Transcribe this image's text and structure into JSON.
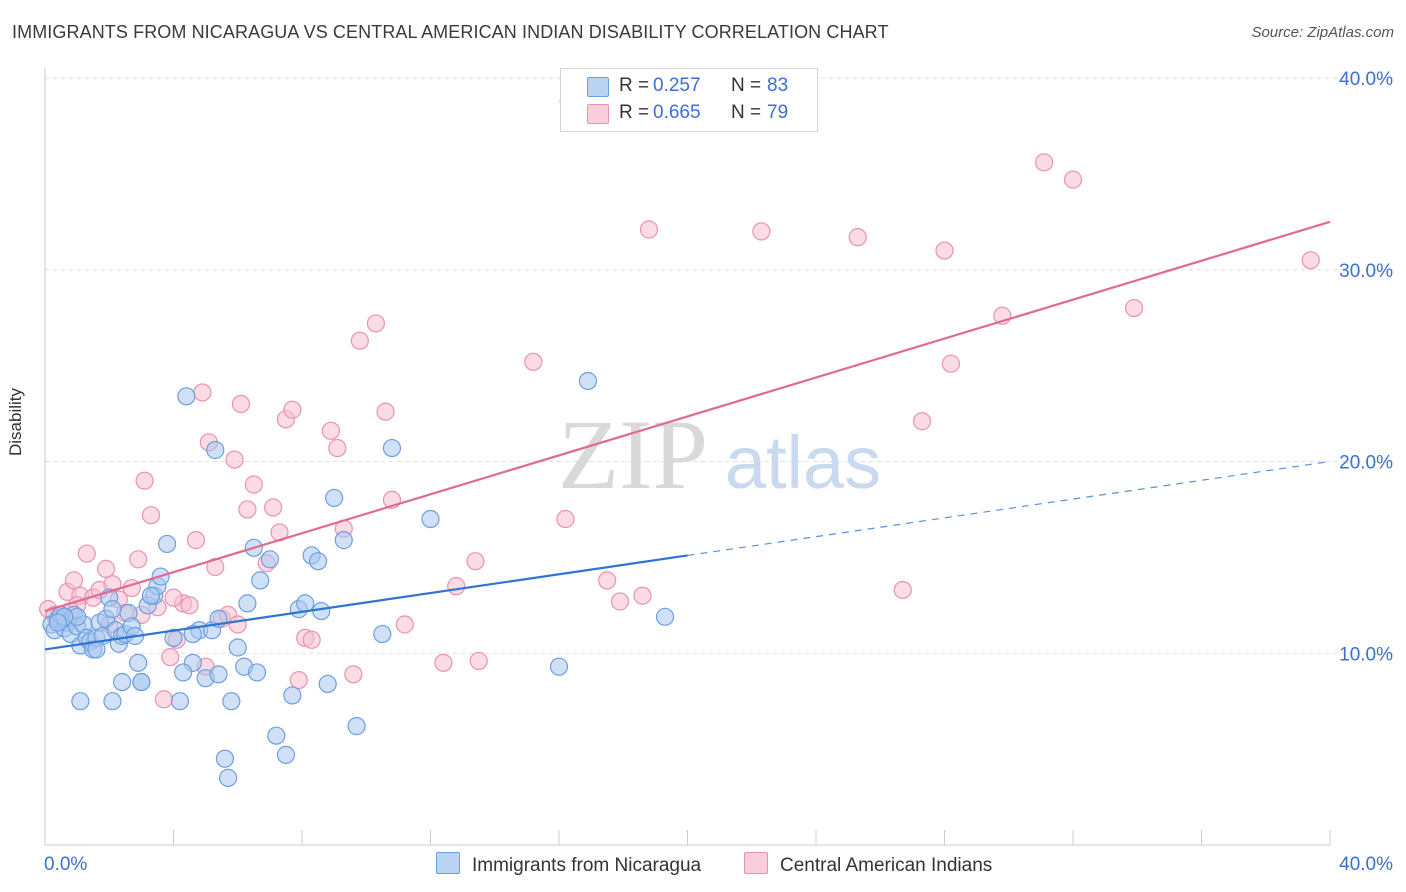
{
  "header": {
    "title": "IMMIGRANTS FROM NICARAGUA VS CENTRAL AMERICAN INDIAN DISABILITY CORRELATION CHART",
    "source": "Source: ZipAtlas.com"
  },
  "watermark": {
    "zip": "ZIP",
    "atlas": "atlas"
  },
  "legend": {
    "r_label": "R =",
    "n_label": "N =",
    "series": [
      {
        "r": "0.257",
        "n": "83"
      },
      {
        "r": "0.665",
        "n": "79"
      }
    ]
  },
  "chart_data": {
    "type": "scatter",
    "title": "IMMIGRANTS FROM NICARAGUA VS CENTRAL AMERICAN INDIAN DISABILITY CORRELATION CHART",
    "xlabel": "",
    "ylabel": "Disability",
    "xlim": [
      0,
      40
    ],
    "ylim": [
      0,
      40
    ],
    "x_tick_labels": [
      "0.0%",
      "40.0%"
    ],
    "y_tick_labels": [
      "10.0%",
      "20.0%",
      "30.0%",
      "40.0%"
    ],
    "y_ticks": [
      10,
      20,
      30,
      40
    ],
    "grid": "horizontal dashed",
    "legend_position": "top-center",
    "colors": {
      "blue_fill": "#a9c9f0",
      "blue_stroke": "#6d9ee0",
      "blue_line": "#2f74d0",
      "pink_fill": "#f7c0d0",
      "pink_stroke": "#e993ad",
      "pink_line": "#e06a92",
      "axis_label": "#3b6fd1"
    },
    "series": [
      {
        "name": "Immigrants from Nicaragua",
        "color": "#6d9ee0",
        "trend": {
          "x0": 0,
          "y0": 10.2,
          "x1": 20,
          "y1": 15.1,
          "dashed_to": {
            "x": 40,
            "y": 20.0
          }
        },
        "points": [
          [
            0.2,
            11.5
          ],
          [
            0.3,
            11.2
          ],
          [
            0.4,
            11.8
          ],
          [
            0.5,
            12.0
          ],
          [
            0.6,
            11.3
          ],
          [
            0.7,
            11.6
          ],
          [
            0.8,
            11.0
          ],
          [
            0.9,
            12.0
          ],
          [
            1.0,
            11.4
          ],
          [
            1.1,
            10.4
          ],
          [
            1.2,
            11.5
          ],
          [
            1.3,
            10.8
          ],
          [
            1.4,
            10.6
          ],
          [
            1.5,
            10.2
          ],
          [
            1.6,
            10.8
          ],
          [
            1.7,
            11.6
          ],
          [
            1.8,
            10.9
          ],
          [
            1.9,
            11.8
          ],
          [
            2.0,
            12.9
          ],
          [
            2.1,
            12.3
          ],
          [
            2.2,
            11.2
          ],
          [
            2.3,
            10.5
          ],
          [
            2.4,
            10.9
          ],
          [
            2.5,
            11.0
          ],
          [
            2.6,
            12.1
          ],
          [
            2.7,
            11.4
          ],
          [
            2.8,
            10.9
          ],
          [
            3.0,
            8.5
          ],
          [
            3.2,
            12.5
          ],
          [
            3.4,
            13.0
          ],
          [
            3.5,
            13.5
          ],
          [
            3.6,
            14.0
          ],
          [
            3.8,
            15.7
          ],
          [
            4.0,
            10.8
          ],
          [
            4.2,
            7.5
          ],
          [
            4.4,
            23.4
          ],
          [
            4.6,
            9.5
          ],
          [
            4.8,
            11.2
          ],
          [
            5.0,
            8.7
          ],
          [
            5.2,
            11.2
          ],
          [
            5.4,
            11.8
          ],
          [
            5.6,
            4.5
          ],
          [
            5.7,
            3.5
          ],
          [
            5.8,
            7.5
          ],
          [
            6.0,
            10.3
          ],
          [
            6.2,
            9.3
          ],
          [
            6.3,
            12.6
          ],
          [
            6.5,
            15.5
          ],
          [
            6.7,
            13.8
          ],
          [
            7.0,
            14.9
          ],
          [
            7.2,
            5.7
          ],
          [
            7.5,
            4.7
          ],
          [
            7.7,
            7.8
          ],
          [
            7.9,
            12.3
          ],
          [
            8.1,
            12.6
          ],
          [
            8.3,
            15.1
          ],
          [
            8.5,
            14.8
          ],
          [
            8.6,
            12.2
          ],
          [
            8.8,
            8.4
          ],
          [
            9.0,
            18.1
          ],
          [
            9.3,
            15.9
          ],
          [
            9.7,
            6.2
          ],
          [
            10.5,
            11.0
          ],
          [
            10.8,
            20.7
          ],
          [
            12.0,
            17.0
          ],
          [
            16.0,
            9.3
          ],
          [
            16.9,
            24.2
          ],
          [
            19.3,
            11.9
          ],
          [
            1.1,
            7.5
          ],
          [
            2.4,
            8.5
          ],
          [
            3.0,
            8.5
          ],
          [
            4.3,
            9.0
          ],
          [
            4.6,
            11.0
          ],
          [
            5.4,
            8.9
          ],
          [
            6.6,
            9.0
          ],
          [
            5.3,
            20.6
          ],
          [
            2.1,
            7.5
          ],
          [
            1.6,
            10.2
          ],
          [
            2.9,
            9.5
          ],
          [
            1.0,
            11.9
          ],
          [
            3.3,
            13.0
          ],
          [
            0.6,
            11.9
          ],
          [
            0.4,
            11.6
          ]
        ]
      },
      {
        "name": "Central American Indians",
        "color": "#e993ad",
        "trend": {
          "x0": 0,
          "y0": 12.2,
          "x1": 40,
          "y1": 32.5
        },
        "points": [
          [
            0.1,
            12.3
          ],
          [
            0.3,
            12.0
          ],
          [
            0.5,
            11.8
          ],
          [
            0.7,
            13.2
          ],
          [
            0.9,
            13.8
          ],
          [
            1.1,
            13.0
          ],
          [
            1.3,
            15.2
          ],
          [
            1.5,
            12.9
          ],
          [
            1.7,
            13.3
          ],
          [
            1.9,
            14.4
          ],
          [
            2.1,
            13.6
          ],
          [
            2.3,
            12.8
          ],
          [
            2.5,
            12.1
          ],
          [
            2.7,
            13.4
          ],
          [
            2.9,
            14.9
          ],
          [
            3.1,
            19.0
          ],
          [
            3.3,
            17.2
          ],
          [
            3.5,
            12.4
          ],
          [
            3.7,
            7.6
          ],
          [
            3.9,
            9.8
          ],
          [
            4.1,
            10.7
          ],
          [
            4.3,
            12.6
          ],
          [
            4.5,
            12.5
          ],
          [
            4.7,
            15.9
          ],
          [
            4.9,
            23.6
          ],
          [
            5.1,
            21.0
          ],
          [
            5.3,
            14.5
          ],
          [
            5.5,
            11.8
          ],
          [
            5.7,
            12.0
          ],
          [
            5.9,
            20.1
          ],
          [
            6.1,
            23.0
          ],
          [
            6.3,
            17.5
          ],
          [
            6.5,
            18.8
          ],
          [
            6.9,
            14.7
          ],
          [
            7.1,
            17.6
          ],
          [
            7.3,
            16.3
          ],
          [
            7.5,
            22.2
          ],
          [
            7.7,
            22.7
          ],
          [
            7.9,
            8.6
          ],
          [
            8.1,
            10.8
          ],
          [
            8.3,
            10.7
          ],
          [
            8.9,
            21.6
          ],
          [
            9.1,
            20.7
          ],
          [
            9.3,
            16.5
          ],
          [
            9.6,
            8.9
          ],
          [
            9.8,
            26.3
          ],
          [
            10.3,
            27.2
          ],
          [
            10.6,
            22.6
          ],
          [
            10.8,
            18.0
          ],
          [
            11.2,
            11.5
          ],
          [
            12.4,
            9.5
          ],
          [
            12.8,
            13.5
          ],
          [
            13.4,
            14.8
          ],
          [
            13.5,
            9.6
          ],
          [
            15.2,
            25.2
          ],
          [
            16.2,
            17.0
          ],
          [
            16.3,
            38.8
          ],
          [
            17.5,
            13.8
          ],
          [
            17.9,
            12.7
          ],
          [
            18.6,
            13.0
          ],
          [
            18.8,
            32.1
          ],
          [
            22.3,
            32.0
          ],
          [
            25.3,
            31.7
          ],
          [
            26.7,
            13.3
          ],
          [
            27.3,
            22.1
          ],
          [
            28.0,
            31.0
          ],
          [
            28.2,
            25.1
          ],
          [
            29.8,
            27.6
          ],
          [
            31.1,
            35.6
          ],
          [
            32.0,
            34.7
          ],
          [
            33.9,
            28.0
          ],
          [
            39.4,
            30.5
          ],
          [
            1.0,
            12.5
          ],
          [
            2.0,
            11.5
          ],
          [
            3.0,
            12.0
          ],
          [
            4.0,
            12.9
          ],
          [
            5.0,
            9.3
          ],
          [
            6.0,
            11.5
          ],
          [
            0.8,
            12.2
          ]
        ]
      }
    ]
  },
  "bottom_legend": {
    "items": [
      {
        "label": "Immigrants from Nicaragua"
      },
      {
        "label": "Central American Indians"
      }
    ]
  }
}
